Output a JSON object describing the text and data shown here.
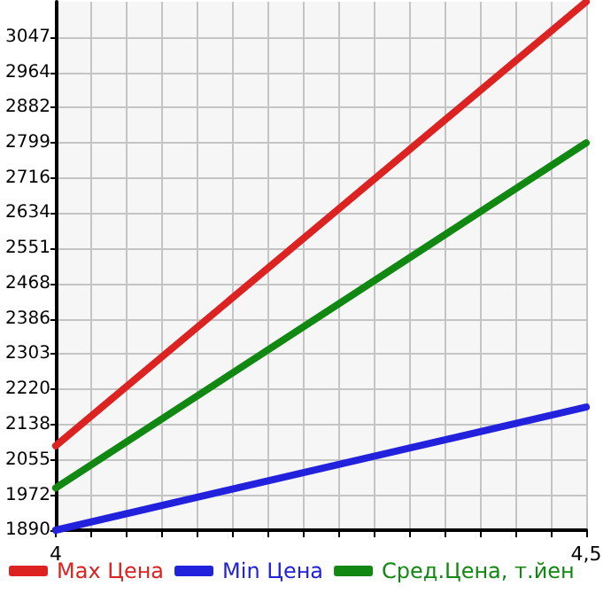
{
  "chart_data": {
    "type": "line",
    "x": [
      4,
      4.5
    ],
    "series": [
      {
        "name": "Max Цена",
        "color": "#dd2222",
        "values": [
          2088,
          3130
        ]
      },
      {
        "name": "Min Цена",
        "color": "#2222dd",
        "values": [
          1890,
          2179
        ]
      },
      {
        "name": "Сред.Цена, т.йен",
        "color": "#118811",
        "values": [
          1989,
          2799
        ]
      }
    ],
    "xlim": [
      4,
      4.5
    ],
    "xticks": [
      4,
      {
        "value": 4.033,
        "label": null
      },
      {
        "value": 4.067,
        "label": null
      },
      {
        "value": 4.1,
        "label": null
      },
      {
        "value": 4.133,
        "label": null
      },
      {
        "value": 4.167,
        "label": null
      },
      {
        "value": 4.2,
        "label": null
      },
      {
        "value": 4.233,
        "label": null
      },
      {
        "value": 4.267,
        "label": null
      },
      {
        "value": 4.3,
        "label": null
      },
      {
        "value": 4.333,
        "label": null
      },
      {
        "value": 4.367,
        "label": null
      },
      {
        "value": 4.4,
        "label": null
      },
      {
        "value": 4.433,
        "label": null
      },
      {
        "value": 4.467,
        "label": null
      },
      {
        "value": 4.5,
        "label": "4,5"
      }
    ],
    "ylim": [
      1890,
      3130
    ],
    "yticks": [
      1890,
      1972,
      2055,
      2138,
      2220,
      2303,
      2386,
      2468,
      2551,
      2634,
      2716,
      2799,
      2882,
      2964,
      3047
    ],
    "grid": true,
    "legend": "bottom",
    "marker": "none",
    "line_style": "solid"
  }
}
